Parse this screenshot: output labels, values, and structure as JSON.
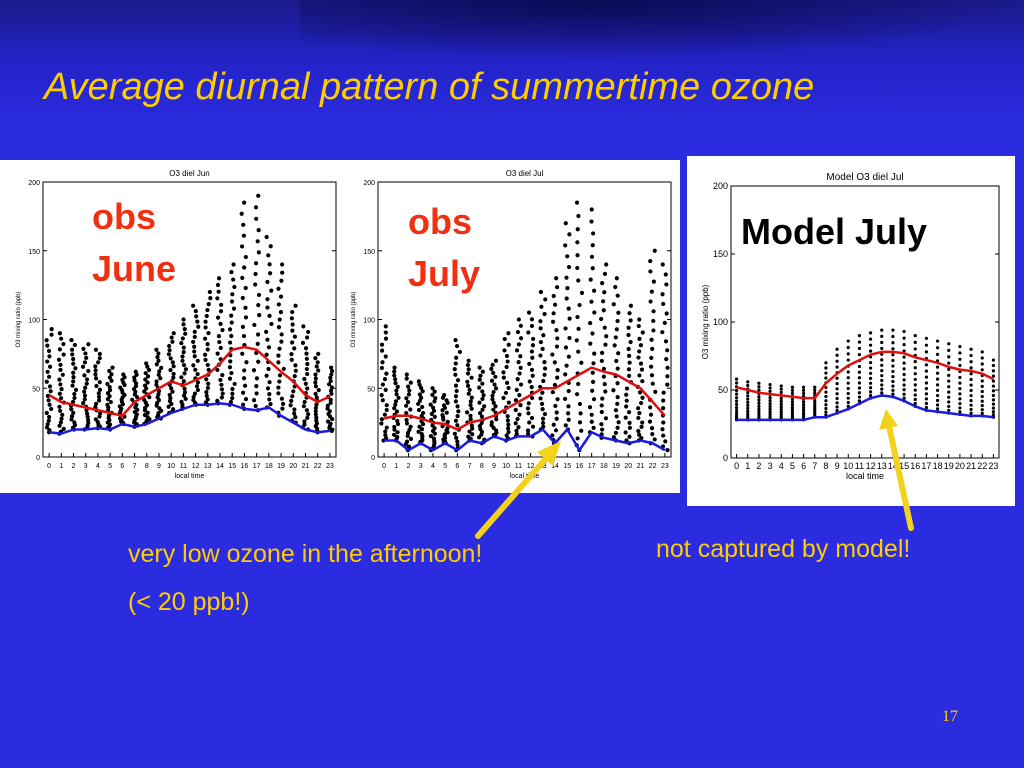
{
  "slide": {
    "title": "Average diurnal pattern of summertime ozone",
    "page_number": "17",
    "caption_left_line1": "very low ozone in the afternoon!",
    "caption_left_line2": "(< 20 ppb!)",
    "caption_right": "not captured by model!",
    "colors": {
      "background": "#2b2be0",
      "text": "#ffcc00",
      "arrow": "#f2d21c",
      "mean": "#e01010",
      "min": "#1a1ae0",
      "points": "#000000"
    }
  },
  "chart_data": [
    {
      "type": "scatter",
      "title": "O3 diel Jun",
      "overlay_label": "obs\nJune",
      "xlabel": "local time",
      "ylabel": "O3 mixing ratio (ppb)",
      "ylim": [
        0,
        200
      ],
      "xlim": [
        -0.5,
        23.5
      ],
      "x_ticks": [
        "0",
        "1",
        "2",
        "3",
        "4",
        "5",
        "6",
        "7",
        "8",
        "9",
        "10",
        "11",
        "12",
        "13",
        "14",
        "15",
        "16",
        "17",
        "18",
        "19",
        "20",
        "21",
        "22",
        "23"
      ],
      "y_ticks": [
        "0",
        "50",
        "100",
        "150",
        "200"
      ],
      "series": [
        {
          "kind": "mean",
          "x": [
            0,
            1,
            2,
            3,
            4,
            5,
            6,
            7,
            8,
            9,
            10,
            11,
            12,
            13,
            14,
            15,
            16,
            17,
            18,
            19,
            20,
            21,
            22,
            23
          ],
          "values": [
            45,
            40,
            38,
            36,
            34,
            32,
            30,
            40,
            45,
            50,
            55,
            52,
            56,
            60,
            68,
            78,
            80,
            78,
            70,
            62,
            55,
            45,
            40,
            44
          ]
        },
        {
          "kind": "min",
          "x": [
            0,
            1,
            2,
            3,
            4,
            5,
            6,
            7,
            8,
            9,
            10,
            11,
            12,
            13,
            14,
            15,
            16,
            17,
            18,
            19,
            20,
            21,
            22,
            23
          ],
          "values": [
            18,
            17,
            20,
            20,
            21,
            20,
            24,
            22,
            24,
            28,
            32,
            35,
            38,
            38,
            39,
            38,
            35,
            34,
            36,
            30,
            25,
            20,
            18,
            19
          ]
        },
        {
          "kind": "max",
          "x": [
            0,
            1,
            2,
            3,
            4,
            5,
            6,
            7,
            8,
            9,
            10,
            11,
            12,
            13,
            14,
            15,
            16,
            17,
            18,
            19,
            20,
            21,
            22,
            23
          ],
          "values": [
            93,
            90,
            85,
            82,
            78,
            65,
            60,
            62,
            68,
            78,
            90,
            100,
            110,
            120,
            130,
            140,
            185,
            190,
            160,
            140,
            110,
            95,
            75,
            65
          ]
        }
      ]
    },
    {
      "type": "scatter",
      "title": "O3 diel Jul",
      "overlay_label": "obs\nJuly",
      "xlabel": "local time",
      "ylabel": "O3 mixing ratio (ppb)",
      "ylim": [
        0,
        200
      ],
      "xlim": [
        -0.5,
        23.5
      ],
      "x_ticks": [
        "0",
        "1",
        "2",
        "3",
        "4",
        "5",
        "6",
        "7",
        "8",
        "9",
        "10",
        "11",
        "12",
        "13",
        "14",
        "15",
        "16",
        "17",
        "18",
        "19",
        "20",
        "21",
        "22",
        "23"
      ],
      "y_ticks": [
        "0",
        "50",
        "100",
        "150",
        "200"
      ],
      "series": [
        {
          "kind": "mean",
          "x": [
            0,
            1,
            2,
            3,
            4,
            5,
            6,
            7,
            8,
            9,
            10,
            11,
            12,
            13,
            14,
            15,
            16,
            17,
            18,
            19,
            20,
            21,
            22,
            23
          ],
          "values": [
            28,
            30,
            30,
            28,
            25,
            24,
            20,
            25,
            27,
            30,
            35,
            40,
            45,
            50,
            50,
            55,
            60,
            65,
            62,
            60,
            55,
            50,
            40,
            30
          ]
        },
        {
          "kind": "min",
          "x": [
            0,
            1,
            2,
            3,
            4,
            5,
            6,
            7,
            8,
            9,
            10,
            11,
            12,
            13,
            14,
            15,
            16,
            17,
            18,
            19,
            20,
            21,
            22,
            23
          ],
          "values": [
            12,
            12,
            5,
            10,
            5,
            10,
            5,
            12,
            10,
            15,
            12,
            15,
            15,
            20,
            10,
            20,
            5,
            18,
            14,
            12,
            10,
            12,
            10,
            5
          ]
        },
        {
          "kind": "max",
          "x": [
            0,
            1,
            2,
            3,
            4,
            5,
            6,
            7,
            8,
            9,
            10,
            11,
            12,
            13,
            14,
            15,
            16,
            17,
            18,
            19,
            20,
            21,
            22,
            23
          ],
          "values": [
            95,
            65,
            60,
            55,
            50,
            45,
            85,
            70,
            65,
            70,
            90,
            100,
            105,
            120,
            130,
            170,
            185,
            180,
            140,
            130,
            110,
            100,
            150,
            140
          ]
        }
      ]
    },
    {
      "type": "scatter",
      "title": "Model O3 diel Jul",
      "overlay_label": "Model July",
      "xlabel": "local time",
      "ylabel": "O3 mixing ratio (ppb)",
      "ylim": [
        0,
        200
      ],
      "xlim": [
        -0.5,
        23.5
      ],
      "x_ticks": [
        "0",
        "1",
        "2",
        "3",
        "4",
        "5",
        "6",
        "7",
        "8",
        "9",
        "10",
        "11",
        "12",
        "13",
        "14",
        "15",
        "16",
        "17",
        "18",
        "19",
        "20",
        "21",
        "22",
        "23"
      ],
      "y_ticks": [
        "0",
        "50",
        "100",
        "150",
        "200"
      ],
      "series": [
        {
          "kind": "mean",
          "x": [
            0,
            1,
            2,
            3,
            4,
            5,
            6,
            7,
            8,
            9,
            10,
            11,
            12,
            13,
            14,
            15,
            16,
            17,
            18,
            19,
            20,
            21,
            22,
            23
          ],
          "values": [
            52,
            50,
            48,
            47,
            46,
            45,
            44,
            44,
            55,
            62,
            68,
            72,
            76,
            78,
            78,
            77,
            74,
            72,
            70,
            67,
            65,
            64,
            62,
            58
          ]
        },
        {
          "kind": "min",
          "x": [
            0,
            1,
            2,
            3,
            4,
            5,
            6,
            7,
            8,
            9,
            10,
            11,
            12,
            13,
            14,
            15,
            16,
            17,
            18,
            19,
            20,
            21,
            22,
            23
          ],
          "values": [
            28,
            28,
            28,
            28,
            28,
            28,
            28,
            30,
            30,
            33,
            36,
            40,
            44,
            46,
            45,
            42,
            38,
            35,
            34,
            33,
            32,
            31,
            31,
            30
          ]
        },
        {
          "kind": "max",
          "x": [
            0,
            1,
            2,
            3,
            4,
            5,
            6,
            7,
            8,
            9,
            10,
            11,
            12,
            13,
            14,
            15,
            16,
            17,
            18,
            19,
            20,
            21,
            22,
            23
          ],
          "values": [
            58,
            56,
            55,
            54,
            53,
            52,
            52,
            52,
            70,
            80,
            86,
            90,
            92,
            94,
            94,
            93,
            90,
            88,
            86,
            84,
            82,
            80,
            78,
            72
          ]
        }
      ]
    }
  ]
}
